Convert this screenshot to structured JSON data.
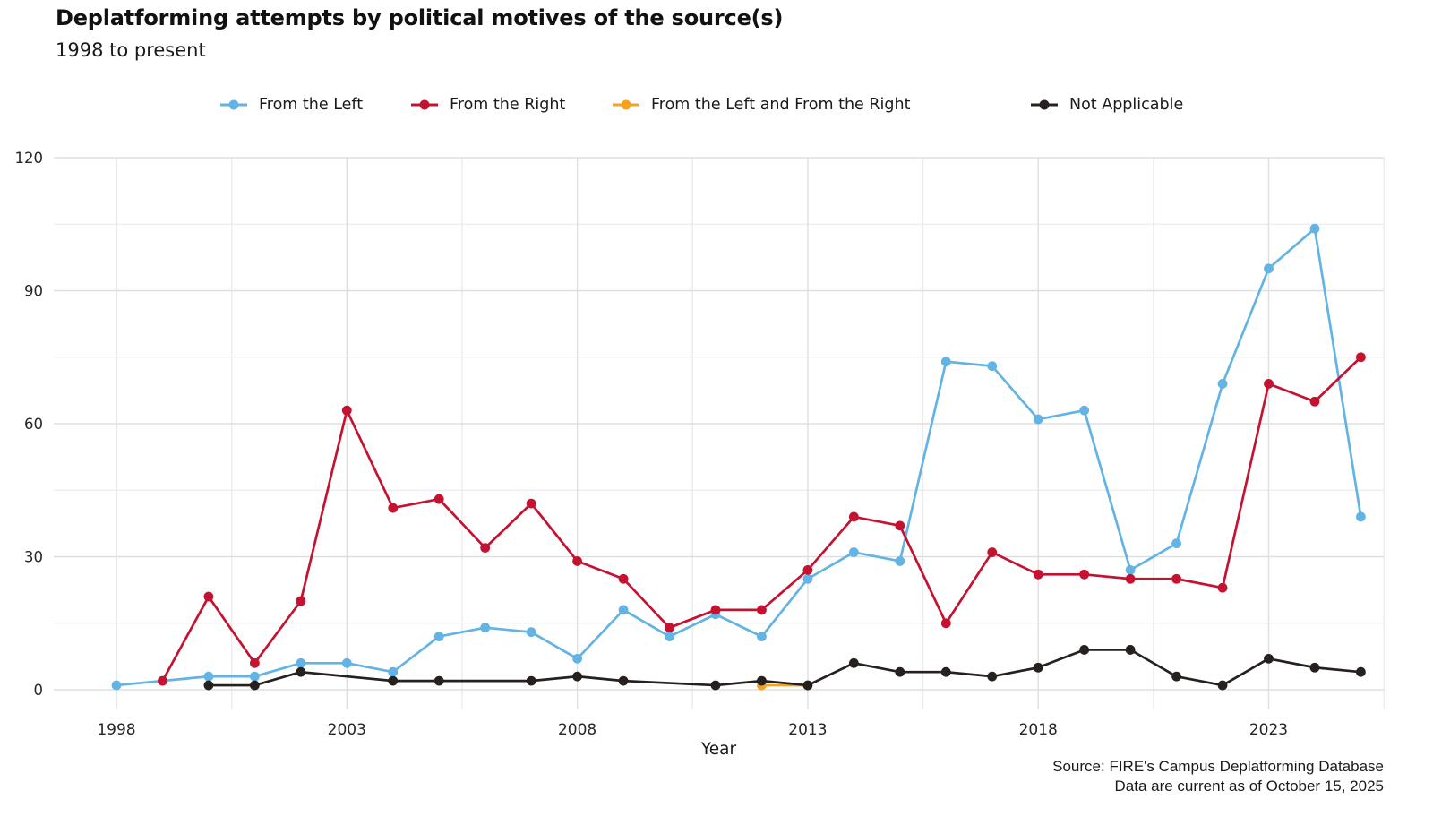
{
  "header": {
    "title": "Deplatforming attempts by political motives of the source(s)",
    "subtitle": "1998 to present"
  },
  "source": {
    "line1": "Source: FIRE's Campus Deplatforming Database",
    "line2": "Data are current as of October 15, 2025"
  },
  "chart_data": {
    "type": "line",
    "title": "Deplatforming attempts by political motives of the source(s)",
    "subtitle": "1998 to present",
    "xlabel": "Year",
    "ylabel": "",
    "xlim": [
      1998,
      2025
    ],
    "ylim": [
      0,
      120
    ],
    "y_ticks_major": [
      0,
      30,
      60,
      90,
      120
    ],
    "y_ticks_minor": [
      15,
      45,
      75,
      105
    ],
    "x_ticks_major": [
      1998,
      2003,
      2008,
      2013,
      2018,
      2023
    ],
    "x_ticks_minor": [
      2000.5,
      2005.5,
      2010.5,
      2015.5,
      2020.5,
      2025.5
    ],
    "grid": true,
    "legend_position": "top",
    "x": [
      1998,
      1999,
      2000,
      2001,
      2002,
      2003,
      2004,
      2005,
      2006,
      2007,
      2008,
      2009,
      2010,
      2011,
      2012,
      2013,
      2014,
      2015,
      2016,
      2017,
      2018,
      2019,
      2020,
      2021,
      2022,
      2023,
      2024,
      2025
    ],
    "series": [
      {
        "name": "From the Left",
        "color": "#63B3E4",
        "values": [
          1,
          2,
          3,
          3,
          6,
          6,
          4,
          12,
          14,
          13,
          7,
          18,
          12,
          17,
          12,
          25,
          31,
          29,
          74,
          73,
          61,
          63,
          27,
          33,
          69,
          95,
          104,
          39
        ]
      },
      {
        "name": "From the Right",
        "color": "#C41230",
        "values": [
          null,
          2,
          21,
          6,
          20,
          63,
          41,
          43,
          32,
          42,
          29,
          25,
          14,
          18,
          18,
          27,
          39,
          37,
          15,
          31,
          26,
          26,
          25,
          25,
          23,
          69,
          65,
          75
        ]
      },
      {
        "name": "From the Left and From the Right",
        "color": "#F5A31E",
        "values": [
          null,
          null,
          null,
          null,
          null,
          null,
          null,
          null,
          null,
          null,
          null,
          null,
          null,
          null,
          1,
          1,
          null,
          null,
          null,
          null,
          null,
          null,
          null,
          null,
          null,
          null,
          null,
          null
        ]
      },
      {
        "name": "Not Applicable",
        "color": "#26201E",
        "values": [
          null,
          null,
          1,
          1,
          4,
          null,
          2,
          2,
          null,
          2,
          3,
          2,
          null,
          1,
          2,
          1,
          6,
          4,
          4,
          3,
          5,
          9,
          9,
          3,
          1,
          7,
          5,
          4
        ]
      }
    ],
    "colors": {
      "grid_major": "#DFDFDF",
      "grid_minor": "#EBEBEB",
      "tick_label": "#262626"
    }
  }
}
